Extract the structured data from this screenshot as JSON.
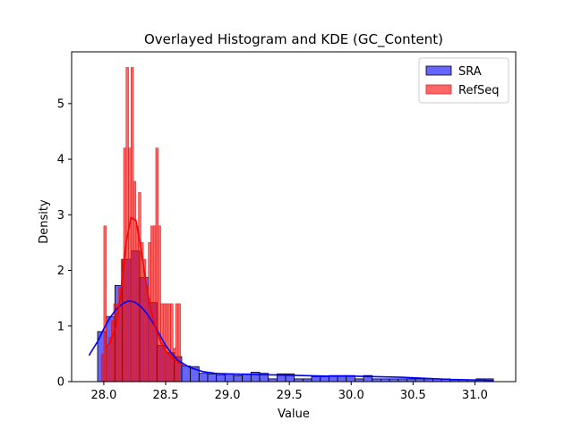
{
  "chart_data": {
    "type": "histogram",
    "title": "Overlayed Histogram and KDE (GC_Content)",
    "xlabel": "Value",
    "ylabel": "Density",
    "xlim": [
      27.74,
      31.33
    ],
    "ylim": [
      0,
      5.93
    ],
    "xticks": [
      "28.0",
      "28.5",
      "29.0",
      "29.5",
      "30.0",
      "30.5",
      "31.0"
    ],
    "yticks": [
      "0",
      "1",
      "2",
      "3",
      "4",
      "5"
    ],
    "legend": {
      "position": "top-right"
    },
    "series": [
      {
        "name": "SRA",
        "fill": "#0000ff",
        "fill_opacity": 0.6,
        "edge": "#000000",
        "bins": [
          [
            27.95,
            28.02,
            0.9
          ],
          [
            28.02,
            28.09,
            1.17
          ],
          [
            28.09,
            28.15,
            1.73
          ],
          [
            28.15,
            28.22,
            2.2
          ],
          [
            28.22,
            28.29,
            2.35
          ],
          [
            28.29,
            28.36,
            1.87
          ],
          [
            28.36,
            28.43,
            1.42
          ],
          [
            28.43,
            28.5,
            0.65
          ],
          [
            28.5,
            28.57,
            0.52
          ],
          [
            28.57,
            28.63,
            0.45
          ],
          [
            28.63,
            28.7,
            0.28
          ],
          [
            28.7,
            28.77,
            0.27
          ],
          [
            28.77,
            28.84,
            0.15
          ],
          [
            28.84,
            28.91,
            0.14
          ],
          [
            28.91,
            28.98,
            0.12
          ],
          [
            28.98,
            29.05,
            0.14
          ],
          [
            29.05,
            29.12,
            0.11
          ],
          [
            29.12,
            29.19,
            0.14
          ],
          [
            29.19,
            29.26,
            0.17
          ],
          [
            29.26,
            29.33,
            0.15
          ],
          [
            29.33,
            29.4,
            0.05
          ],
          [
            29.4,
            29.47,
            0.14
          ],
          [
            29.47,
            29.54,
            0.14
          ],
          [
            29.54,
            29.61,
            0.05
          ],
          [
            29.61,
            29.68,
            0.05
          ],
          [
            29.68,
            29.75,
            0.09
          ],
          [
            29.75,
            29.82,
            0.09
          ],
          [
            29.82,
            29.89,
            0.11
          ],
          [
            29.89,
            29.96,
            0.11
          ],
          [
            29.96,
            30.03,
            0.11
          ],
          [
            30.03,
            30.1,
            0.05
          ],
          [
            30.1,
            30.17,
            0.11
          ],
          [
            30.17,
            30.24,
            0.05
          ],
          [
            30.24,
            30.31,
            0.05
          ],
          [
            30.31,
            30.38,
            0.05
          ],
          [
            30.38,
            30.45,
            0.05
          ],
          [
            30.45,
            30.52,
            0.05
          ],
          [
            30.52,
            30.59,
            0.05
          ],
          [
            30.59,
            30.66,
            0.05
          ],
          [
            30.66,
            30.73,
            0.05
          ],
          [
            30.73,
            30.8,
            0.05
          ],
          [
            30.8,
            30.87,
            0.03
          ],
          [
            30.87,
            30.94,
            0.03
          ],
          [
            30.94,
            31.01,
            0.03
          ],
          [
            31.01,
            31.08,
            0.05
          ],
          [
            31.08,
            31.15,
            0.05
          ]
        ],
        "kde": {
          "color": "#0000ff",
          "x": [
            27.88,
            27.95,
            28.0,
            28.05,
            28.1,
            28.15,
            28.2,
            28.25,
            28.3,
            28.35,
            28.4,
            28.45,
            28.5,
            28.55,
            28.6,
            28.7,
            28.8,
            28.9,
            29.0,
            29.2,
            29.4,
            29.6,
            29.8,
            30.0,
            30.2,
            30.4,
            30.6,
            30.8,
            31.0,
            31.15
          ],
          "y": [
            0.47,
            0.72,
            0.95,
            1.15,
            1.3,
            1.4,
            1.45,
            1.43,
            1.35,
            1.22,
            1.05,
            0.85,
            0.65,
            0.5,
            0.38,
            0.25,
            0.18,
            0.15,
            0.14,
            0.13,
            0.12,
            0.11,
            0.1,
            0.1,
            0.09,
            0.08,
            0.06,
            0.04,
            0.03,
            0.02
          ]
        }
      },
      {
        "name": "RefSeq",
        "fill": "#ff0000",
        "fill_opacity": 0.6,
        "edge": "#d62728",
        "bins": [
          [
            27.98,
            28.0,
            0.5
          ],
          [
            28.0,
            28.02,
            2.8
          ],
          [
            28.02,
            28.04,
            0.6
          ],
          [
            28.04,
            28.06,
            0.8
          ],
          [
            28.06,
            28.08,
            1.1
          ],
          [
            28.08,
            28.1,
            1.4
          ],
          [
            28.1,
            28.12,
            1.4
          ],
          [
            28.12,
            28.14,
            1.7
          ],
          [
            28.14,
            28.16,
            2.2
          ],
          [
            28.16,
            28.18,
            4.2
          ],
          [
            28.18,
            28.2,
            5.65
          ],
          [
            28.2,
            28.22,
            4.2
          ],
          [
            28.22,
            28.24,
            5.65
          ],
          [
            28.24,
            28.26,
            3.6
          ],
          [
            28.26,
            28.28,
            2.8
          ],
          [
            28.28,
            28.3,
            3.4
          ],
          [
            28.3,
            28.32,
            2.5
          ],
          [
            28.32,
            28.34,
            2.2
          ],
          [
            28.34,
            28.36,
            1.7
          ],
          [
            28.36,
            28.38,
            2.5
          ],
          [
            28.38,
            28.4,
            2.8
          ],
          [
            28.4,
            28.42,
            2.8
          ],
          [
            28.42,
            28.44,
            4.2
          ],
          [
            28.44,
            28.46,
            2.8
          ],
          [
            28.46,
            28.48,
            1.4
          ],
          [
            28.48,
            28.5,
            1.4
          ],
          [
            28.5,
            28.52,
            1.4
          ],
          [
            28.52,
            28.54,
            1.4
          ],
          [
            28.54,
            28.56,
            1.4
          ],
          [
            28.56,
            28.58,
            0.6
          ],
          [
            28.58,
            28.6,
            1.4
          ],
          [
            28.6,
            28.62,
            1.4
          ]
        ],
        "kde": {
          "color": "#ff0000",
          "x": [
            28.02,
            28.06,
            28.1,
            28.14,
            28.18,
            28.22,
            28.26,
            28.3,
            28.34,
            28.38,
            28.42,
            28.46,
            28.5,
            28.54,
            28.58,
            28.62,
            28.65
          ],
          "y": [
            0.6,
            0.75,
            1.0,
            1.6,
            2.5,
            2.95,
            2.9,
            2.4,
            1.8,
            1.3,
            0.95,
            0.72,
            0.55,
            0.45,
            0.38,
            0.32,
            0.3
          ]
        }
      }
    ]
  }
}
